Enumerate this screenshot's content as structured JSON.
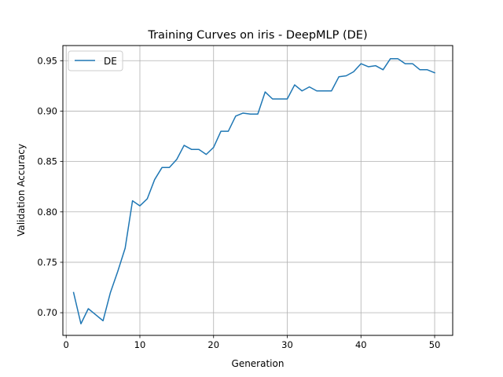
{
  "chart_data": {
    "type": "line",
    "title": "Training Curves on iris - DeepMLP (DE)",
    "xlabel": "Generation",
    "ylabel": "Validation Accuracy",
    "xlim": [
      -0.45,
      52.45
    ],
    "ylim": [
      0.6775,
      0.965
    ],
    "x_ticks": [
      0,
      10,
      20,
      30,
      40,
      50
    ],
    "y_ticks": [
      0.7,
      0.75,
      0.8,
      0.85,
      0.9,
      0.95
    ],
    "grid": true,
    "legend": {
      "location": "upper-left"
    },
    "series": [
      {
        "name": "DE",
        "color": "#1f77b4",
        "x": [
          1,
          2,
          3,
          4,
          5,
          6,
          7,
          8,
          9,
          10,
          11,
          12,
          13,
          14,
          15,
          16,
          17,
          18,
          19,
          20,
          21,
          22,
          23,
          24,
          25,
          26,
          27,
          28,
          29,
          30,
          31,
          32,
          33,
          34,
          35,
          36,
          37,
          38,
          39,
          40,
          41,
          42,
          43,
          44,
          45,
          46,
          47,
          48,
          49,
          50
        ],
        "y": [
          0.72,
          0.689,
          0.704,
          0.698,
          0.692,
          0.72,
          0.741,
          0.764,
          0.811,
          0.806,
          0.813,
          0.832,
          0.844,
          0.844,
          0.852,
          0.866,
          0.862,
          0.862,
          0.857,
          0.864,
          0.88,
          0.88,
          0.895,
          0.898,
          0.897,
          0.897,
          0.919,
          0.912,
          0.912,
          0.912,
          0.926,
          0.92,
          0.924,
          0.92,
          0.92,
          0.92,
          0.934,
          0.935,
          0.939,
          0.947,
          0.944,
          0.945,
          0.941,
          0.952,
          0.952,
          0.947,
          0.947,
          0.941,
          0.941,
          0.938
        ]
      }
    ]
  }
}
